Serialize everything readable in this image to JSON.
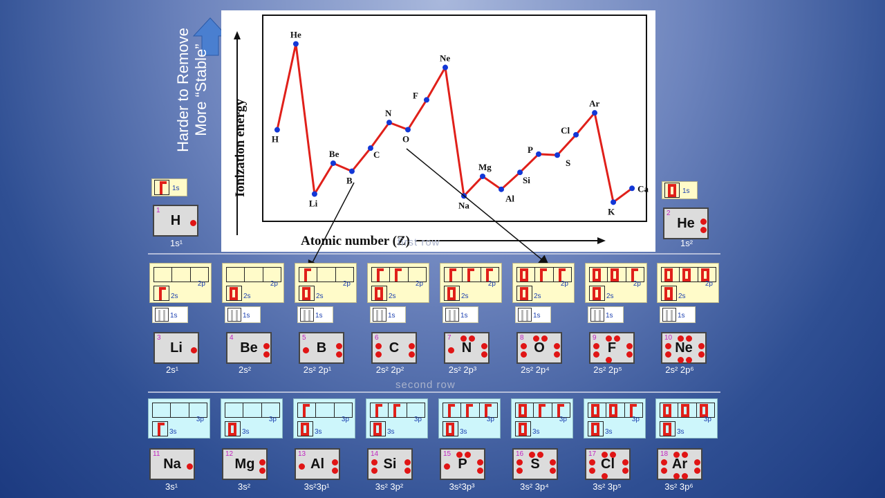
{
  "caption": {
    "line1": "Harder to Remove",
    "line2": "More “Stable”"
  },
  "chart_data": {
    "type": "line",
    "ylabel": "Ionization energy",
    "xlabel": "Atomic number (Z)",
    "points": [
      {
        "symbol": "H",
        "z": 1,
        "value": 1312
      },
      {
        "symbol": "He",
        "z": 2,
        "value": 2372
      },
      {
        "symbol": "Li",
        "z": 3,
        "value": 520
      },
      {
        "symbol": "Be",
        "z": 4,
        "value": 900
      },
      {
        "symbol": "B",
        "z": 5,
        "value": 801
      },
      {
        "symbol": "C",
        "z": 6,
        "value": 1086
      },
      {
        "symbol": "N",
        "z": 7,
        "value": 1402
      },
      {
        "symbol": "O",
        "z": 8,
        "value": 1314
      },
      {
        "symbol": "F",
        "z": 9,
        "value": 1681
      },
      {
        "symbol": "Ne",
        "z": 10,
        "value": 2081
      },
      {
        "symbol": "Na",
        "z": 11,
        "value": 496
      },
      {
        "symbol": "Mg",
        "z": 12,
        "value": 738
      },
      {
        "symbol": "Al",
        "z": 13,
        "value": 578
      },
      {
        "symbol": "Si",
        "z": 14,
        "value": 787
      },
      {
        "symbol": "P",
        "z": 15,
        "value": 1012
      },
      {
        "symbol": "S",
        "z": 16,
        "value": 1000
      },
      {
        "symbol": "Cl",
        "z": 17,
        "value": 1251
      },
      {
        "symbol": "Ar",
        "z": 18,
        "value": 1521
      },
      {
        "symbol": "K",
        "z": 19,
        "value": 419
      },
      {
        "symbol": "Ca",
        "z": 20,
        "value": 590
      }
    ],
    "xlim": [
      0.3,
      20.7
    ],
    "ylim": [
      200,
      2700
    ]
  },
  "row_labels": {
    "first": "first row",
    "second": "second row"
  },
  "first_row": [
    {
      "number": "1",
      "symbol": "H",
      "config": "1s¹",
      "dots": 1,
      "orbital_label": "1s",
      "electrons": 1
    },
    {
      "number": "2",
      "symbol": "He",
      "config": "1s²",
      "dots": 2,
      "orbital_label": "1s",
      "electrons": 2
    }
  ],
  "second_row": [
    {
      "number": "3",
      "symbol": "Li",
      "config": "2s¹",
      "dots": 1,
      "s": 1,
      "p": [
        0,
        0,
        0
      ]
    },
    {
      "number": "4",
      "symbol": "Be",
      "config": "2s²",
      "dots": 2,
      "s": 2,
      "p": [
        0,
        0,
        0
      ]
    },
    {
      "number": "5",
      "symbol": "B",
      "config": "2s² 2p¹",
      "dots": 3,
      "s": 2,
      "p": [
        1,
        0,
        0
      ]
    },
    {
      "number": "6",
      "symbol": "C",
      "config": "2s² 2p²",
      "dots": 4,
      "s": 2,
      "p": [
        1,
        1,
        0
      ]
    },
    {
      "number": "7",
      "symbol": "N",
      "config": "2s² 2p³",
      "dots": 5,
      "s": 2,
      "p": [
        1,
        1,
        1
      ]
    },
    {
      "number": "8",
      "symbol": "O",
      "config": "2s² 2p⁴",
      "dots": 6,
      "s": 2,
      "p": [
        2,
        1,
        1
      ]
    },
    {
      "number": "9",
      "symbol": "F",
      "config": "2s² 2p⁵",
      "dots": 7,
      "s": 2,
      "p": [
        2,
        2,
        1
      ]
    },
    {
      "number": "10",
      "symbol": "Ne",
      "config": "2s² 2p⁶",
      "dots": 8,
      "s": 2,
      "p": [
        2,
        2,
        2
      ]
    }
  ],
  "third_row": [
    {
      "number": "11",
      "symbol": "Na",
      "config": "3s¹",
      "dots": 1,
      "s": 1,
      "p": [
        0,
        0,
        0
      ]
    },
    {
      "number": "12",
      "symbol": "Mg",
      "config": "3s²",
      "dots": 2,
      "s": 2,
      "p": [
        0,
        0,
        0
      ]
    },
    {
      "number": "13",
      "symbol": "Al",
      "config": "3s²3p¹",
      "dots": 3,
      "s": 2,
      "p": [
        1,
        0,
        0
      ]
    },
    {
      "number": "14",
      "symbol": "Si",
      "config": "3s² 3p²",
      "dots": 4,
      "s": 2,
      "p": [
        1,
        1,
        0
      ]
    },
    {
      "number": "15",
      "symbol": "P",
      "config": "3s²3p³",
      "dots": 5,
      "s": 2,
      "p": [
        1,
        1,
        1
      ]
    },
    {
      "number": "16",
      "symbol": "S",
      "config": "3s² 3p⁴",
      "dots": 6,
      "s": 2,
      "p": [
        2,
        1,
        1
      ]
    },
    {
      "number": "17",
      "symbol": "Cl",
      "config": "3s² 3p⁵",
      "dots": 7,
      "s": 2,
      "p": [
        2,
        2,
        1
      ]
    },
    {
      "number": "18",
      "symbol": "Ar",
      "config": "3s² 3p⁶",
      "dots": 8,
      "s": 2,
      "p": [
        2,
        2,
        2
      ]
    }
  ],
  "labels": {
    "p2": "2p",
    "s2": "2s",
    "s1": "1s",
    "p3": "3p",
    "s3": "3s"
  },
  "colors": {
    "line": "#e0201a",
    "marker": "#1237d6",
    "electron": "#e01515"
  }
}
